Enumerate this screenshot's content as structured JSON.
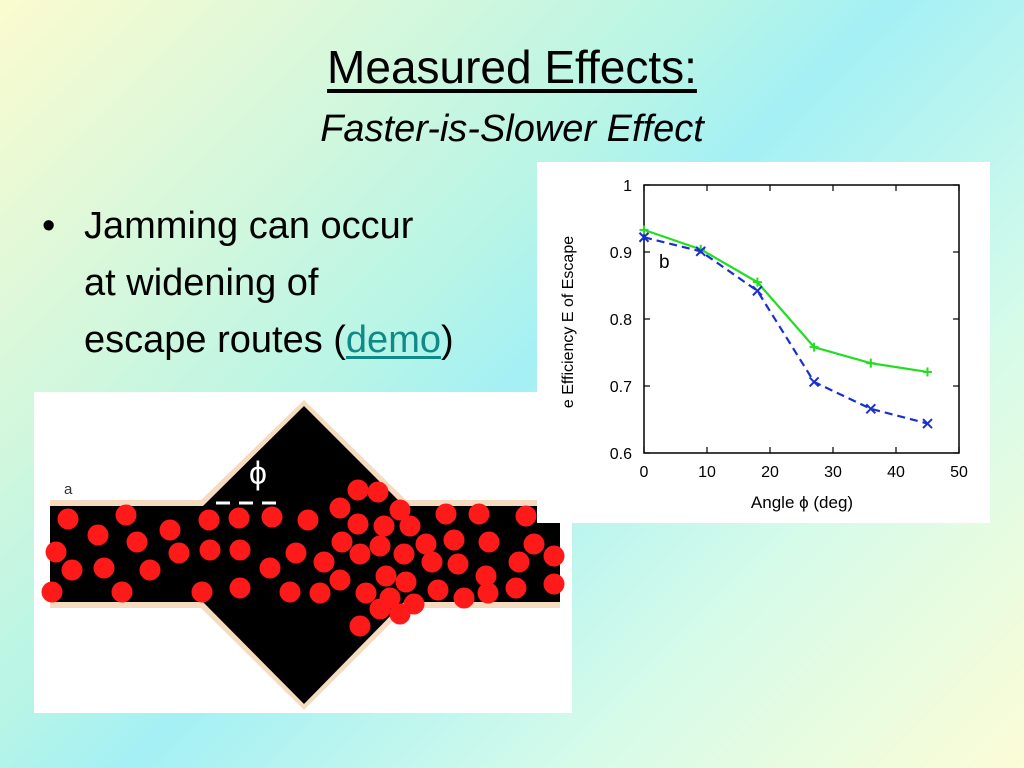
{
  "slide": {
    "title": "Measured Effects:",
    "subtitle": "Faster-is-Slower Effect",
    "bullet_marker": "•",
    "bullet_lines": [
      "Jamming can occur",
      "at widening of"
    ],
    "bullet_last_prefix": "escape routes (",
    "bullet_link": "demo",
    "bullet_last_suffix": ")"
  },
  "simulation": {
    "panel_label": "a",
    "angle_symbol": "ϕ",
    "particle_color": "#ff1a1a",
    "wall_color": "#f5dcc0",
    "floor_color": "#000000"
  },
  "chart_data": {
    "type": "line",
    "panel_label": "b",
    "xlabel": "Angle ϕ (deg)",
    "ylabel": "e Efficiency E of Escape",
    "xlim": [
      0,
      50
    ],
    "ylim": [
      0.6,
      1.0
    ],
    "x_ticks": [
      "0",
      "10",
      "20",
      "30",
      "40",
      "50"
    ],
    "y_ticks": [
      "0.6",
      "0.7",
      "0.8",
      "0.9",
      "1"
    ],
    "grid": false,
    "series": [
      {
        "color": "#22dd22",
        "style": "solid",
        "marker": "+",
        "x": [
          0,
          9,
          18,
          27,
          36,
          45
        ],
        "y": [
          0.933,
          0.904,
          0.855,
          0.758,
          0.734,
          0.721
        ]
      },
      {
        "color": "#1a2fd0",
        "style": "dashed",
        "marker": "x",
        "x": [
          0,
          9,
          18,
          27,
          36,
          45
        ],
        "y": [
          0.922,
          0.901,
          0.842,
          0.706,
          0.666,
          0.644
        ]
      }
    ]
  }
}
